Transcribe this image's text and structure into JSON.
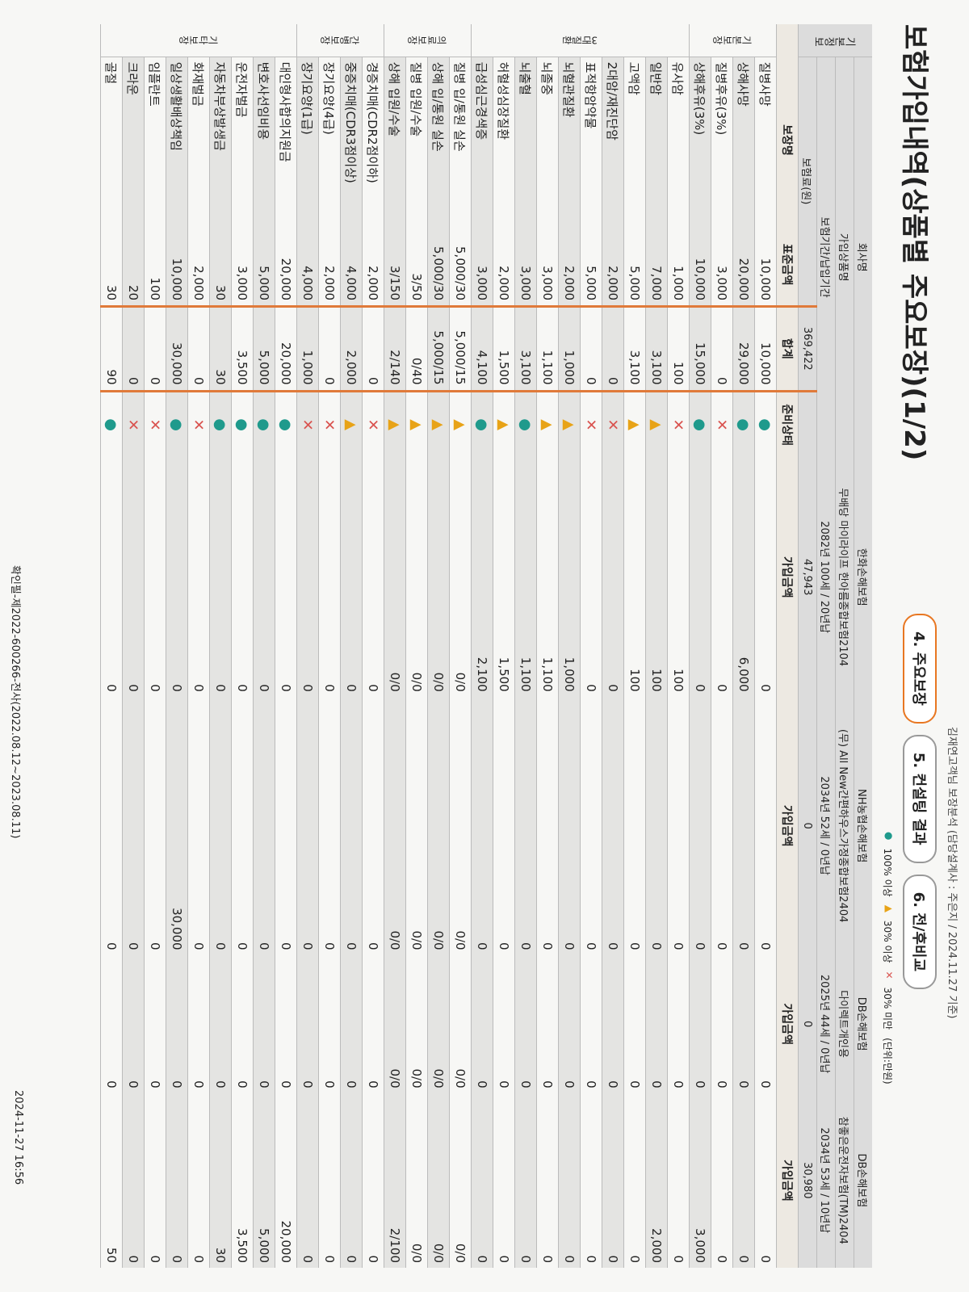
{
  "header": {
    "note": "김재연고객님 보장분석 (담당설계사 : 주은지 / 2024.11.27 기준)",
    "title": "보험가입내역(상품별 주요보장)(1/2)",
    "tabs": [
      "4. 주요보장",
      "5. 컨설팅 결과",
      "6. 전/후비교"
    ],
    "unit": "(단위:만원)"
  },
  "legend": [
    {
      "symbol": "●",
      "label": "100% 이상",
      "color": "#1f9a8c"
    },
    {
      "symbol": "▲",
      "label": "30% 이상",
      "color": "#e8a317"
    },
    {
      "symbol": "✕",
      "label": "30% 미만",
      "color": "#d9534f"
    }
  ],
  "table": {
    "info_label": "기본정보",
    "company_label": "회사명",
    "product_label": "가입상품명",
    "period_label": "보험기간/납입기간",
    "premium_label": "보험료(원)",
    "premium_total": "369,422",
    "columns": [
      "보장명",
      "표준금액",
      "합계",
      "준비상태"
    ],
    "companies": [
      {
        "name": "한화손해보험",
        "product": "무배당 마이라이프 한아름종합보험2104",
        "period": "2082년 100세 / 20년납",
        "premium": "47,943",
        "amount_label": "가입금액"
      },
      {
        "name": "NH농협손해보험",
        "product": "(무) All New간편하우스가정종합보험2404",
        "period": "2034년 52세 / 0년납",
        "premium": "0",
        "amount_label": "가입금액"
      },
      {
        "name": "DB손해보험",
        "product": "다이렉트개인용",
        "period": "2025년 44세 / 0년납",
        "premium": "0",
        "amount_label": "가입금액"
      },
      {
        "name": "DB손해보험",
        "product": "참좋은운전자보험(TM)2404",
        "period": "2034년 53세 / 10년납",
        "premium": "30,980",
        "amount_label": "가입금액"
      }
    ],
    "groups": [
      {
        "name": "기본보장",
        "rows": [
          {
            "name": "질병사망",
            "standard": "10,000",
            "total": "10,000",
            "status": "●",
            "amounts": [
              "0",
              "0",
              "0",
              "0"
            ]
          },
          {
            "name": "상해사망",
            "standard": "20,000",
            "total": "29,000",
            "status": "●",
            "amounts": [
              "6,000",
              "0",
              "0",
              "0"
            ]
          },
          {
            "name": "질병후유(3%)",
            "standard": "3,000",
            "total": "0",
            "status": "✕",
            "amounts": [
              "0",
              "0",
              "0",
              "0"
            ]
          },
          {
            "name": "상해후유(3%)",
            "standard": "10,000",
            "total": "15,000",
            "status": "●",
            "amounts": [
              "0",
              "0",
              "0",
              "3,000"
            ]
          }
        ]
      },
      {
        "name": "3대질환",
        "rows": [
          {
            "name": "유사암",
            "standard": "1,000",
            "total": "100",
            "status": "✕",
            "amounts": [
              "100",
              "0",
              "0",
              "0"
            ]
          },
          {
            "name": "일반암",
            "standard": "7,000",
            "total": "3,100",
            "status": "▲",
            "amounts": [
              "100",
              "0",
              "0",
              "2,000"
            ]
          },
          {
            "name": "고액암",
            "standard": "5,000",
            "total": "3,100",
            "status": "▲",
            "amounts": [
              "100",
              "0",
              "0",
              "0"
            ]
          },
          {
            "name": "2대암/재진단암",
            "standard": "2,000",
            "total": "0",
            "status": "✕",
            "amounts": [
              "0",
              "0",
              "0",
              "0"
            ]
          },
          {
            "name": "표적항암약물",
            "standard": "5,000",
            "total": "0",
            "status": "✕",
            "amounts": [
              "0",
              "0",
              "0",
              "0"
            ]
          },
          {
            "name": "뇌혈관질환",
            "standard": "2,000",
            "total": "1,000",
            "status": "▲",
            "amounts": [
              "1,000",
              "0",
              "0",
              "0"
            ]
          },
          {
            "name": "뇌졸중",
            "standard": "3,000",
            "total": "1,100",
            "status": "▲",
            "amounts": [
              "1,100",
              "0",
              "0",
              "0"
            ]
          },
          {
            "name": "뇌출혈",
            "standard": "3,000",
            "total": "3,100",
            "status": "●",
            "amounts": [
              "1,100",
              "0",
              "0",
              "0"
            ]
          },
          {
            "name": "허혈성심장질환",
            "standard": "2,000",
            "total": "1,500",
            "status": "▲",
            "amounts": [
              "1,500",
              "0",
              "0",
              "0"
            ]
          },
          {
            "name": "급성심근경색증",
            "standard": "3,000",
            "total": "4,100",
            "status": "●",
            "amounts": [
              "2,100",
              "0",
              "0",
              "0"
            ]
          }
        ]
      },
      {
        "name": "의료보장",
        "rows": [
          {
            "name": "질병 입/통원 실손",
            "standard": "5,000/30",
            "total": "5,000/15",
            "status": "▲",
            "amounts": [
              "0/0",
              "0/0",
              "0/0",
              "0/0"
            ]
          },
          {
            "name": "상해 입/통원 실손",
            "standard": "5,000/30",
            "total": "5,000/15",
            "status": "▲",
            "amounts": [
              "0/0",
              "0/0",
              "0/0",
              "0/0"
            ]
          },
          {
            "name": "질병 입원/수술",
            "standard": "3/50",
            "total": "0/40",
            "status": "▲",
            "amounts": [
              "0/0",
              "0/0",
              "0/0",
              "0/0"
            ]
          },
          {
            "name": "상해 입원/수술",
            "standard": "3/150",
            "total": "2/140",
            "status": "▲",
            "amounts": [
              "0/0",
              "0/0",
              "0/0",
              "2/100"
            ]
          }
        ]
      },
      {
        "name": "간병보장",
        "rows": [
          {
            "name": "경증치매(CDR2점이하)",
            "standard": "2,000",
            "total": "0",
            "status": "✕",
            "amounts": [
              "0",
              "0",
              "0",
              "0"
            ]
          },
          {
            "name": "중증치매(CDR3점이상)",
            "standard": "4,000",
            "total": "2,000",
            "status": "▲",
            "amounts": [
              "0",
              "0",
              "0",
              "0"
            ]
          },
          {
            "name": "장기요양(4급)",
            "standard": "2,000",
            "total": "0",
            "status": "✕",
            "amounts": [
              "0",
              "0",
              "0",
              "0"
            ]
          },
          {
            "name": "장기요양(1급)",
            "standard": "4,000",
            "total": "1,000",
            "status": "✕",
            "amounts": [
              "0",
              "0",
              "0",
              "0"
            ]
          }
        ]
      },
      {
        "name": "기타보장",
        "rows": [
          {
            "name": "대인형사합의지원금",
            "standard": "20,000",
            "total": "20,000",
            "status": "●",
            "amounts": [
              "0",
              "0",
              "0",
              "20,000"
            ]
          },
          {
            "name": "변호사선임비용",
            "standard": "5,000",
            "total": "5,000",
            "status": "●",
            "amounts": [
              "0",
              "0",
              "0",
              "5,000"
            ]
          },
          {
            "name": "운전자벌금",
            "standard": "3,000",
            "total": "3,500",
            "status": "●",
            "amounts": [
              "0",
              "0",
              "0",
              "3,500"
            ]
          },
          {
            "name": "자동차부상발생금",
            "standard": "30",
            "total": "30",
            "status": "●",
            "amounts": [
              "0",
              "0",
              "0",
              "30"
            ]
          },
          {
            "name": "화재벌금",
            "standard": "2,000",
            "total": "0",
            "status": "✕",
            "amounts": [
              "0",
              "0",
              "0",
              "0"
            ]
          },
          {
            "name": "일상생활배상책임",
            "standard": "10,000",
            "total": "30,000",
            "status": "●",
            "amounts": [
              "0",
              "30,000",
              "0",
              "0"
            ]
          },
          {
            "name": "임플란트",
            "standard": "100",
            "total": "0",
            "status": "✕",
            "amounts": [
              "0",
              "0",
              "0",
              "0"
            ]
          },
          {
            "name": "크라운",
            "standard": "20",
            "total": "0",
            "status": "✕",
            "amounts": [
              "0",
              "0",
              "0",
              "0"
            ]
          },
          {
            "name": "골절",
            "standard": "30",
            "total": "90",
            "status": "●",
            "amounts": [
              "0",
              "0",
              "0",
              "50"
            ]
          }
        ]
      }
    ]
  },
  "footer": {
    "left": "확인필-제2022-600266-전사(2022.08.12~2023.08.11)",
    "right": "2024-11-27 16:56"
  }
}
